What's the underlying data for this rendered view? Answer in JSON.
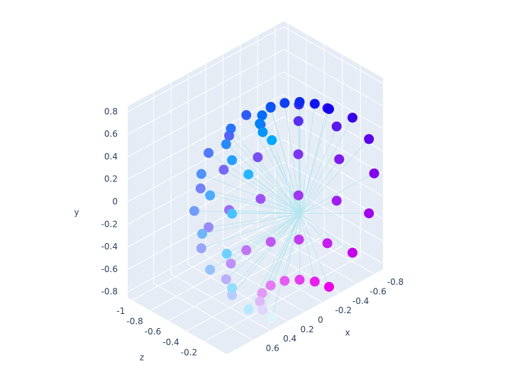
{
  "chart_data": {
    "type": "scatter3d",
    "x_title": "x",
    "y_title": "y",
    "z_title": "z",
    "x": [
      0.33,
      0.3,
      0.23,
      0.13,
      0,
      -0.13,
      -0.23,
      -0.3,
      -0.33,
      0.6,
      0.55,
      0.42,
      0.23,
      0,
      -0.23,
      -0.42,
      -0.55,
      -0.6,
      0.79,
      0.73,
      0.56,
      0.3,
      0,
      -0.3,
      -0.56,
      -0.73,
      -0.79,
      0.85,
      0.79,
      0.6,
      0.33,
      0,
      -0.33,
      -0.6,
      -0.79,
      -0.85,
      0.79,
      0.73,
      0.56,
      0.3,
      0,
      -0.3,
      -0.56,
      -0.73,
      -0.79,
      0.6,
      0.55,
      0.42,
      0.23,
      0,
      -0.23,
      -0.42,
      -0.55,
      -0.6,
      0.33,
      0.3,
      0.23,
      0.13,
      0,
      -0.13,
      -0.23,
      -0.3,
      -0.33
    ],
    "y": [
      -0.79,
      -0.79,
      -0.79,
      -0.79,
      -0.79,
      -0.79,
      -0.79,
      -0.79,
      -0.79,
      -0.6,
      -0.6,
      -0.6,
      -0.6,
      -0.6,
      -0.6,
      -0.6,
      -0.6,
      -0.6,
      -0.33,
      -0.33,
      -0.33,
      -0.33,
      -0.33,
      -0.33,
      -0.33,
      -0.33,
      -0.33,
      0,
      0,
      0,
      0,
      0,
      0,
      0,
      0,
      0,
      0.33,
      0.33,
      0.33,
      0.33,
      0.33,
      0.33,
      0.33,
      0.33,
      0.33,
      0.6,
      0.6,
      0.6,
      0.6,
      0.6,
      0.6,
      0.6,
      0.6,
      0.6,
      0.79,
      0.79,
      0.79,
      0.79,
      0.79,
      0.79,
      0.79,
      0.79,
      0.79
    ],
    "z": [
      0,
      -0.13,
      -0.23,
      -0.3,
      -0.33,
      -0.3,
      -0.23,
      -0.13,
      0,
      0,
      -0.23,
      -0.42,
      -0.55,
      -0.6,
      -0.55,
      -0.42,
      -0.23,
      0,
      0,
      -0.3,
      -0.56,
      -0.73,
      -0.79,
      -0.73,
      -0.56,
      -0.3,
      0,
      0,
      -0.33,
      -0.6,
      -0.79,
      -0.85,
      -0.79,
      -0.6,
      -0.33,
      0,
      0,
      -0.3,
      -0.56,
      -0.73,
      -0.79,
      -0.73,
      -0.56,
      -0.3,
      0,
      0,
      -0.23,
      -0.42,
      -0.55,
      -0.6,
      -0.55,
      -0.42,
      -0.23,
      0,
      0,
      -0.13,
      -0.23,
      -0.3,
      -0.33,
      -0.3,
      -0.23,
      -0.13,
      0
    ],
    "colors": [
      "#dcf5ff",
      "#ded6fd",
      "#e0b8fa",
      "#e299f8",
      "#e47bf5",
      "#e55cf3",
      "#e73df0",
      "#e91fee",
      "#eb00eb",
      "#b7e8ff",
      "#b9cbfd",
      "#bbaefa",
      "#bd91f8",
      "#bf74f5",
      "#c157f3",
      "#c33af0",
      "#c51dee",
      "#c700eb",
      "#93dcff",
      "#95c1fd",
      "#97a5fa",
      "#998af8",
      "#9b6ef5",
      "#9d53f3",
      "#9f37f0",
      "#a11cee",
      "#a300eb",
      "#6ed0ff",
      "#70b6fd",
      "#739cfa",
      "#7582f8",
      "#7768f5",
      "#794ef3",
      "#7c34f0",
      "#7e1aee",
      "#8000eb",
      "#49c3ff",
      "#4babfd",
      "#4e92fa",
      "#507af8",
      "#5362f5",
      "#5549f3",
      "#5731f0",
      "#5a18ee",
      "#5c00eb",
      "#25b6ff",
      "#279ffd",
      "#2a89fa",
      "#2c72f8",
      "#2f5bf5",
      "#3144f3",
      "#332ef0",
      "#3617ee",
      "#3800eb",
      "#00aaff",
      "#0395fd",
      "#0580fa",
      "#086af8",
      "#0a55f5",
      "#0d40f3",
      "#0f2bf0",
      "#1215ee",
      "#1400eb"
    ],
    "center": [
      0,
      0,
      0
    ],
    "line_color": "#b4e6ee",
    "xlim": [
      -0.9,
      0.9
    ],
    "xticks": [
      -0.8,
      -0.6,
      -0.4,
      -0.2,
      0,
      0.2,
      0.4,
      0.6
    ],
    "ylim": [
      -0.85,
      0.85
    ],
    "yticks": [
      -0.8,
      -0.6,
      -0.4,
      -0.2,
      0,
      0.2,
      0.4,
      0.6,
      0.8
    ],
    "zlim": [
      -1.05,
      0.05
    ],
    "zticks": [
      -1,
      -0.8,
      -0.6,
      -0.4,
      -0.2
    ],
    "grid": true
  }
}
